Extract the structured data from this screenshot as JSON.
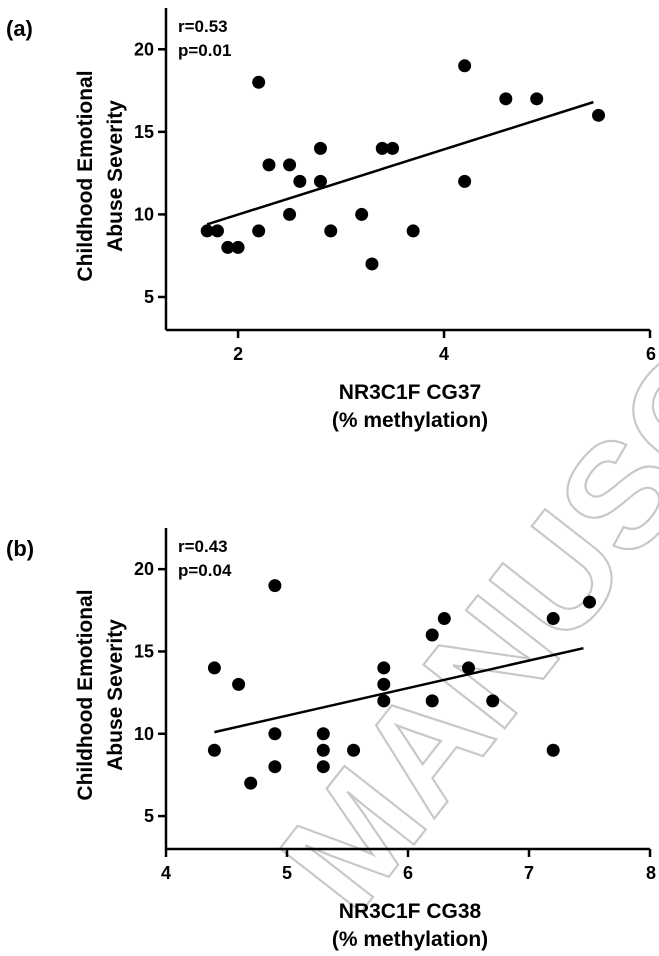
{
  "watermark": "MANUSC",
  "chart_data": [
    {
      "type": "scatter",
      "panel_label": "(a)",
      "stats": {
        "r": "r=0.53",
        "p": "p=0.01"
      },
      "xlabel_line1": "NR3C1F CG37",
      "xlabel_line2": "(% methylation)",
      "ylabel_line1": "Childhood Emotional",
      "ylabel_line2": "Abuse Severity",
      "xlim": [
        1.3,
        6
      ],
      "ylim": [
        3,
        22.5
      ],
      "xticks": [
        2,
        4,
        6
      ],
      "yticks": [
        5,
        10,
        15,
        20
      ],
      "x": [
        1.7,
        1.8,
        1.9,
        2.0,
        2.2,
        2.2,
        2.3,
        2.5,
        2.5,
        2.6,
        2.8,
        2.8,
        2.9,
        3.2,
        3.3,
        3.4,
        3.5,
        3.7,
        4.2,
        4.2,
        4.6,
        4.9,
        5.5
      ],
      "y": [
        9,
        9,
        8,
        8,
        18,
        9,
        13,
        13,
        10,
        12,
        14,
        12,
        9,
        10,
        7,
        14,
        14,
        9,
        19,
        12,
        17,
        17,
        16
      ],
      "fit_line": {
        "x": [
          1.7,
          5.45
        ],
        "y": [
          9.4,
          16.8
        ]
      }
    },
    {
      "type": "scatter",
      "panel_label": "(b)",
      "stats": {
        "r": "r=0.43",
        "p": "p=0.04"
      },
      "xlabel_line1": "NR3C1F CG38",
      "xlabel_line2": "(% methylation)",
      "ylabel_line1": "Childhood Emotional",
      "ylabel_line2": "Abuse Severity",
      "xlim": [
        4,
        8
      ],
      "ylim": [
        3,
        22.5
      ],
      "xticks": [
        4,
        5,
        6,
        7,
        8
      ],
      "yticks": [
        5,
        10,
        15,
        20
      ],
      "x": [
        4.4,
        4.4,
        4.6,
        4.7,
        4.9,
        4.9,
        4.9,
        5.3,
        5.3,
        5.3,
        5.55,
        5.8,
        5.8,
        5.8,
        6.2,
        6.2,
        6.3,
        6.5,
        6.7,
        7.2,
        7.2,
        7.5
      ],
      "y": [
        14,
        9,
        13,
        7,
        19,
        10,
        8,
        10,
        9,
        8,
        9,
        14,
        13,
        12,
        16,
        12,
        17,
        14,
        12,
        17,
        9,
        18
      ],
      "fit_line": {
        "x": [
          4.4,
          7.45
        ],
        "y": [
          10.1,
          15.2
        ]
      }
    }
  ]
}
